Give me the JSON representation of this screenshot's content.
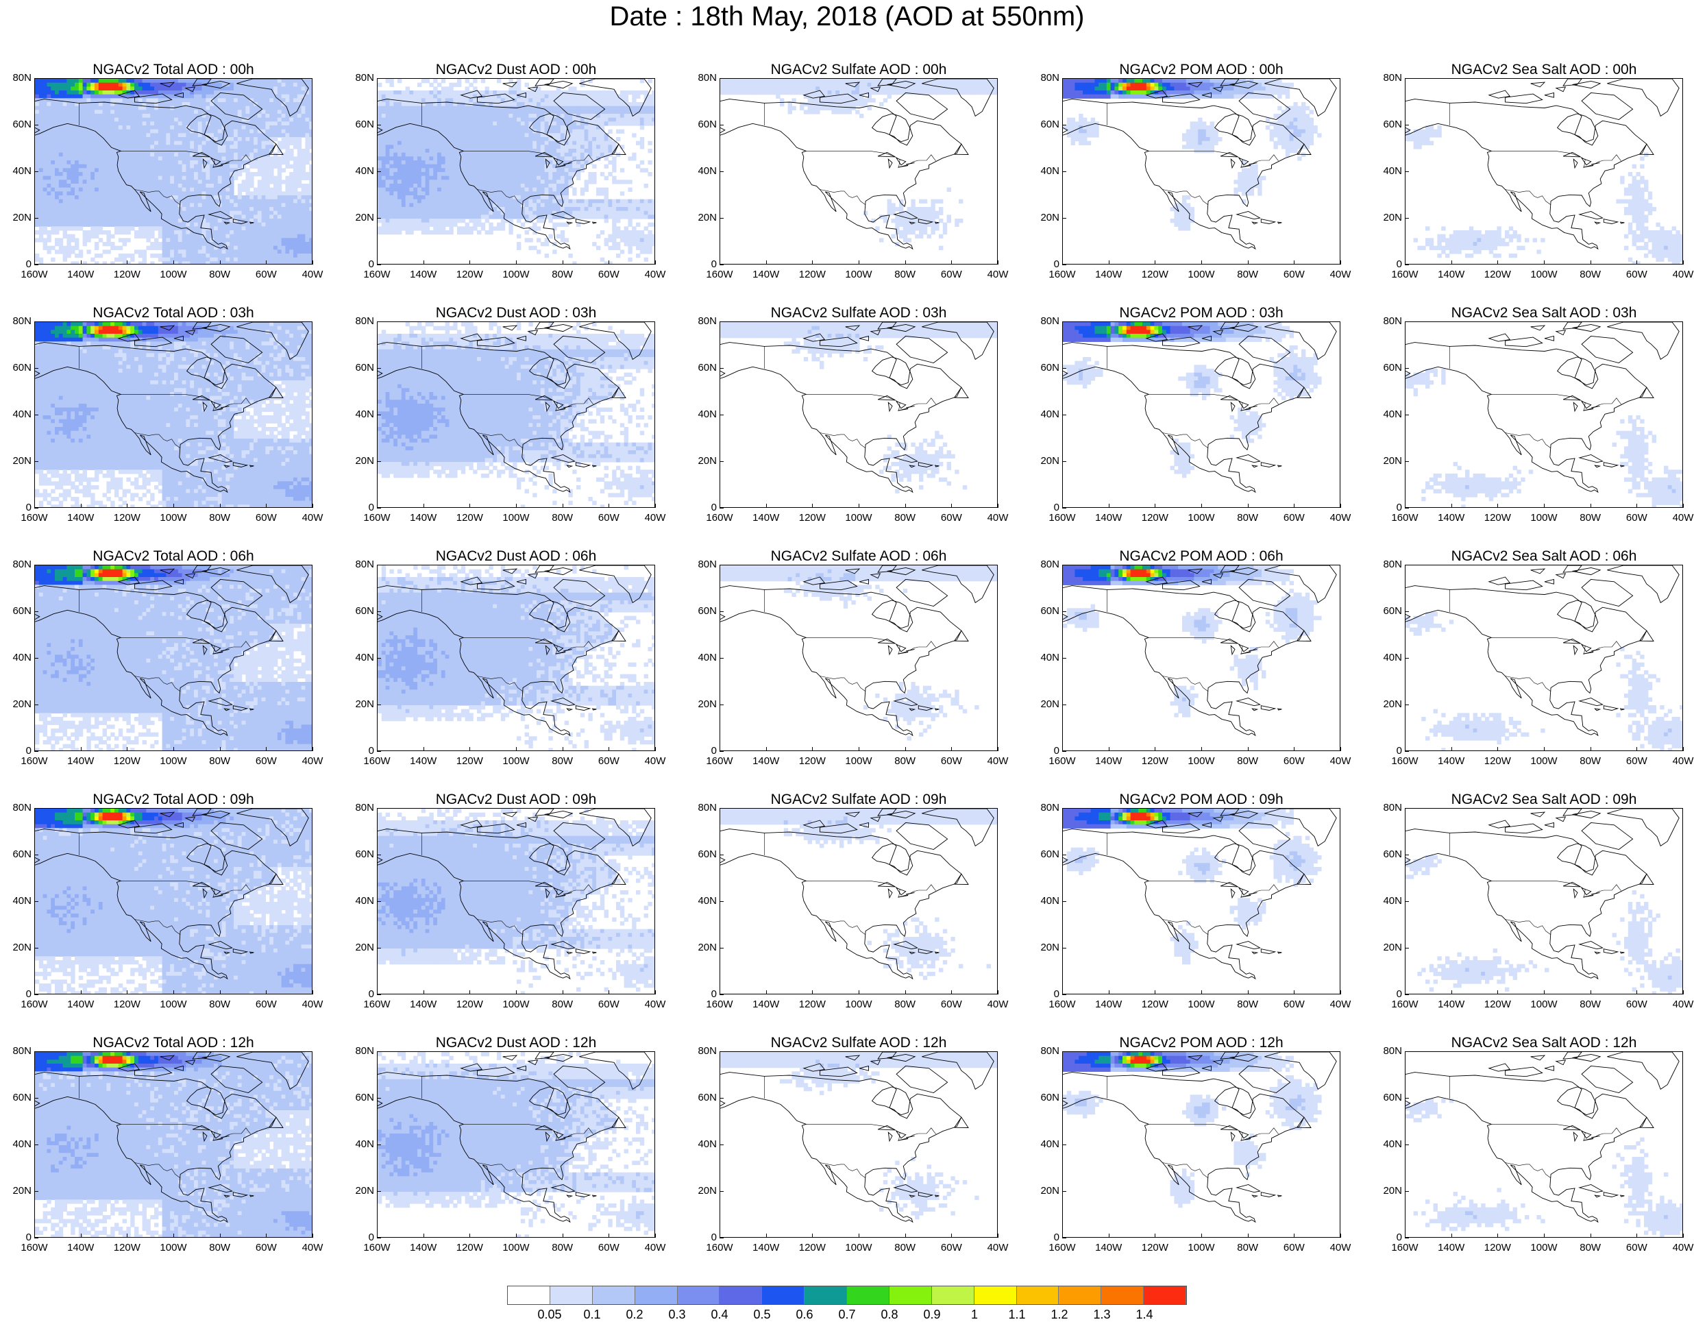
{
  "title": "Date : 18th May, 2018 (AOD at 550nm)",
  "y_tick_labels": [
    "80N",
    "60N",
    "40N",
    "20N",
    "0"
  ],
  "x_tick_labels": [
    "160W",
    "140W",
    "120W",
    "100W",
    "80W",
    "60W",
    "40W"
  ],
  "columns": [
    "total",
    "dust",
    "sulfate",
    "pom",
    "seasalt"
  ],
  "panel_titles": [
    [
      "NGACv2 Total AOD : 00h",
      "NGACv2 Dust AOD : 00h",
      "NGACv2 Sulfate AOD : 00h",
      "NGACv2 POM AOD : 00h",
      "NGACv2 Sea Salt AOD : 00h"
    ],
    [
      "NGACv2 Total AOD : 03h",
      "NGACv2 Dust AOD : 03h",
      "NGACv2 Sulfate AOD : 03h",
      "NGACv2 POM AOD : 03h",
      "NGACv2 Sea Salt AOD : 03h"
    ],
    [
      "NGACv2 Total AOD : 06h",
      "NGACv2 Dust AOD : 06h",
      "NGACv2 Sulfate AOD : 06h",
      "NGACv2 POM AOD : 06h",
      "NGACv2 Sea Salt AOD : 06h"
    ],
    [
      "NGACv2 Total AOD : 09h",
      "NGACv2 Dust AOD : 09h",
      "NGACv2 Sulfate AOD : 09h",
      "NGACv2 POM AOD : 09h",
      "NGACv2 Sea Salt  AOD : 09h"
    ],
    [
      "NGACv2 Total AOD  : 12h",
      "NGACv2 Dust AOD : 12h",
      "NGACv2 Sulfate AOD : 12h",
      "NGACv2 POM  AOD : 12h",
      "NGACv2 Sea Salt  AOD : 12h"
    ]
  ],
  "colorbar": {
    "colors": [
      "#ffffff",
      "#d4e0fb",
      "#b4c8f8",
      "#93aef4",
      "#7b8ff0",
      "#5d69e6",
      "#1d55f0",
      "#109a96",
      "#34d51d",
      "#84f20d",
      "#c0f545",
      "#fcf800",
      "#fcc200",
      "#fc9c00",
      "#fc7400",
      "#fc2c10"
    ],
    "labels": [
      "0.05",
      "0.1",
      "0.2",
      "0.3",
      "0.4",
      "0.5",
      "0.6",
      "0.7",
      "0.8",
      "0.9",
      "1",
      "1.1",
      "1.2",
      "1.3",
      "1.4"
    ]
  }
}
